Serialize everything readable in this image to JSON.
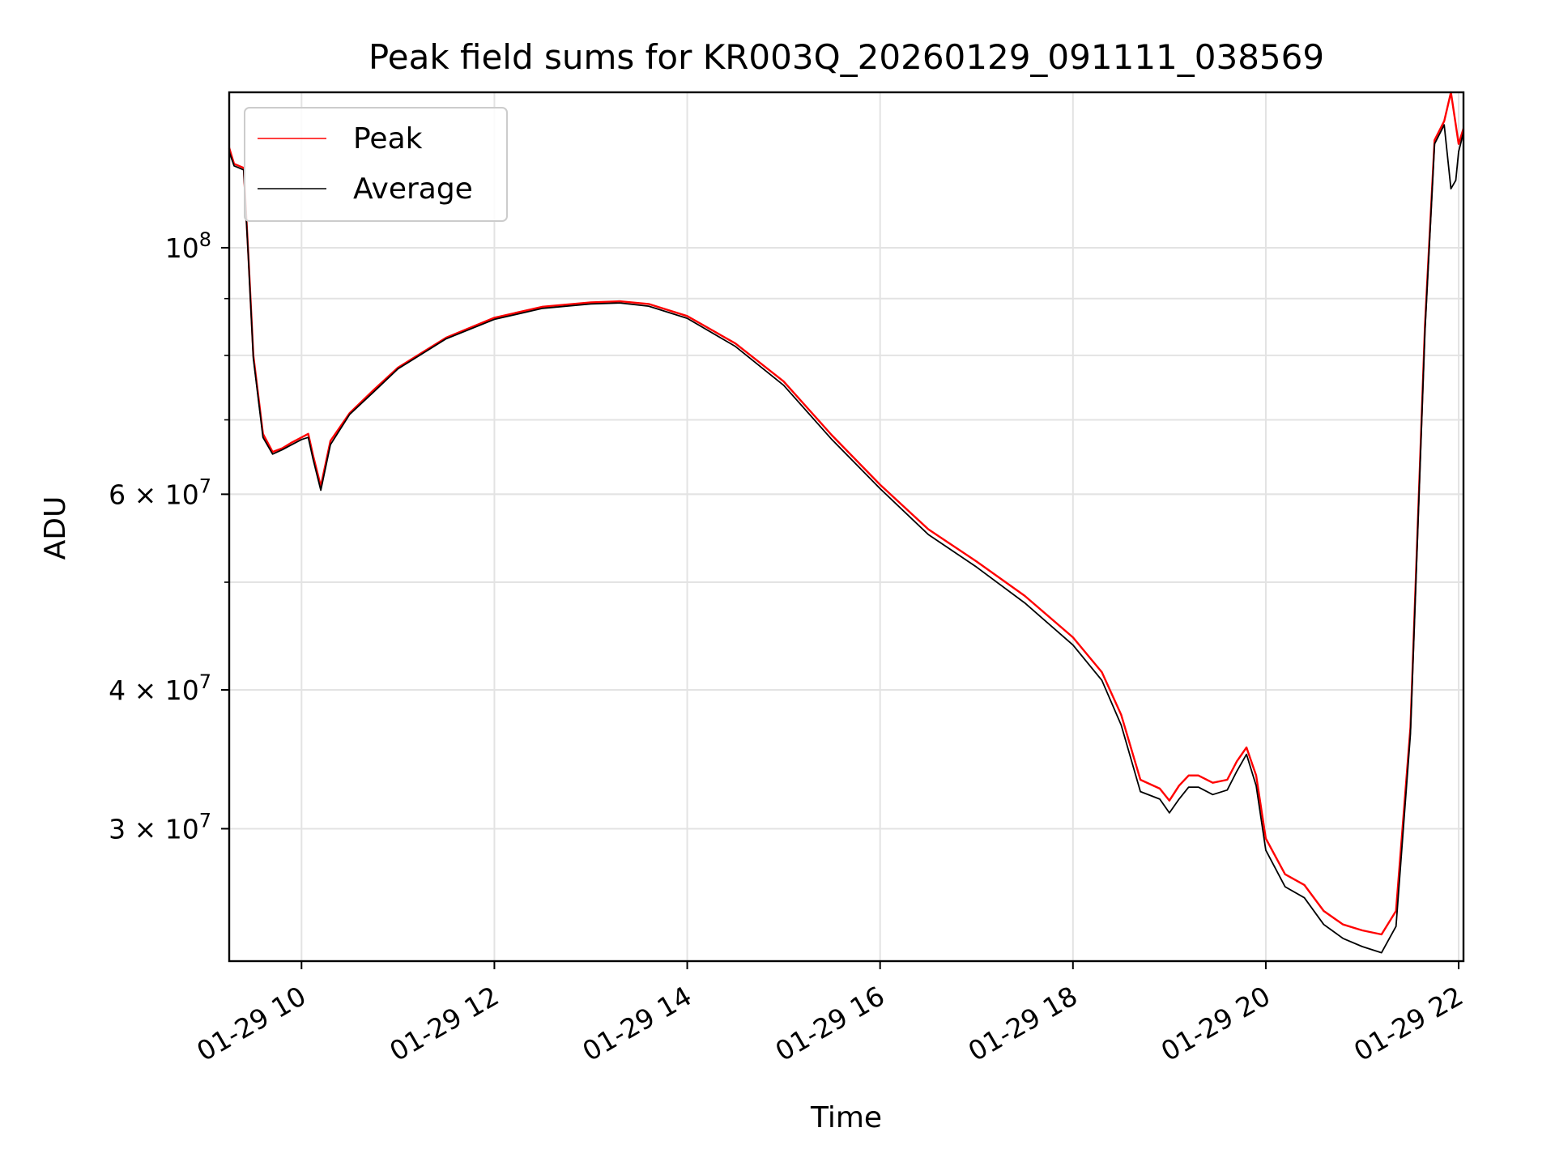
{
  "chart_data": {
    "type": "line",
    "title": "Peak field sums for KR003Q_20260129_091111_038569",
    "xlabel": "Time",
    "ylabel": "ADU",
    "x_unit": "hour of day (2026-01-29)",
    "xlim": [
      9.25,
      22.05
    ],
    "ylim": [
      22800000,
      138000000
    ],
    "yscale": "log",
    "grid": true,
    "legend_position": "top-left",
    "x_ticks": [
      {
        "value": 10,
        "label": "01-29 10"
      },
      {
        "value": 12,
        "label": "01-29 12"
      },
      {
        "value": 14,
        "label": "01-29 14"
      },
      {
        "value": 16,
        "label": "01-29 16"
      },
      {
        "value": 18,
        "label": "01-29 18"
      },
      {
        "value": 20,
        "label": "01-29 20"
      },
      {
        "value": 22,
        "label": "01-29 22"
      }
    ],
    "y_ticks": [
      {
        "value": 100000000,
        "mantissa": "",
        "exponent": "8",
        "base": "10"
      },
      {
        "value": 60000000,
        "mantissa": "6",
        "exponent": "7",
        "base": "10"
      },
      {
        "value": 40000000,
        "mantissa": "4",
        "exponent": "7",
        "base": "10"
      },
      {
        "value": 30000000,
        "mantissa": "3",
        "exponent": "7",
        "base": "10"
      }
    ],
    "y_minor_ticks": [
      30000000,
      40000000,
      50000000,
      60000000,
      70000000,
      80000000,
      90000000
    ],
    "x": [
      9.25,
      9.3,
      9.4,
      9.45,
      9.5,
      9.6,
      9.7,
      9.8,
      9.9,
      10.0,
      10.07,
      10.12,
      10.2,
      10.3,
      10.5,
      10.75,
      11.0,
      11.5,
      12.0,
      12.5,
      13.0,
      13.3,
      13.6,
      14.0,
      14.5,
      15.0,
      15.5,
      16.0,
      16.5,
      17.0,
      17.5,
      18.0,
      18.3,
      18.5,
      18.7,
      18.9,
      19.0,
      19.1,
      19.2,
      19.3,
      19.45,
      19.6,
      19.7,
      19.8,
      19.9,
      20.0,
      20.2,
      20.4,
      20.6,
      20.8,
      21.0,
      21.2,
      21.35,
      21.5,
      21.65,
      21.75,
      21.85,
      21.92,
      21.97,
      22.0,
      22.05
    ],
    "series": [
      {
        "name": "Peak",
        "color": "#ff0000",
        "values": [
          123000000,
          119000000,
          118000000,
          98000000,
          80000000,
          68000000,
          65500000,
          66000000,
          66800000,
          67500000,
          68000000,
          65000000,
          61000000,
          67000000,
          71000000,
          74500000,
          78000000,
          83000000,
          86500000,
          88500000,
          89300000,
          89500000,
          89000000,
          86800000,
          82000000,
          75800000,
          67800000,
          61200000,
          55800000,
          52200000,
          48600000,
          44600000,
          41500000,
          38000000,
          33200000,
          32600000,
          31800000,
          32800000,
          33500000,
          33500000,
          33000000,
          33200000,
          34500000,
          35500000,
          33500000,
          29400000,
          27300000,
          26700000,
          25300000,
          24600000,
          24300000,
          24100000,
          25300000,
          37000000,
          85000000,
          125000000,
          130000000,
          138000000,
          129000000,
          124000000,
          128000000
        ]
      },
      {
        "name": "Average",
        "color": "#000000",
        "values": [
          122000000,
          118500000,
          117500000,
          97500000,
          79500000,
          67500000,
          65200000,
          65800000,
          66500000,
          67200000,
          67500000,
          64500000,
          60500000,
          66500000,
          70800000,
          74200000,
          77800000,
          82800000,
          86200000,
          88200000,
          89000000,
          89200000,
          88600000,
          86400000,
          81500000,
          75200000,
          67200000,
          60700000,
          55200000,
          51600000,
          47900000,
          43900000,
          40800000,
          37200000,
          32400000,
          31900000,
          31000000,
          31900000,
          32700000,
          32700000,
          32200000,
          32500000,
          33800000,
          35000000,
          32800000,
          28700000,
          26600000,
          26000000,
          24600000,
          23900000,
          23500000,
          23200000,
          24500000,
          36500000,
          84000000,
          124000000,
          129000000,
          113000000,
          115000000,
          122000000,
          127000000
        ]
      }
    ]
  }
}
